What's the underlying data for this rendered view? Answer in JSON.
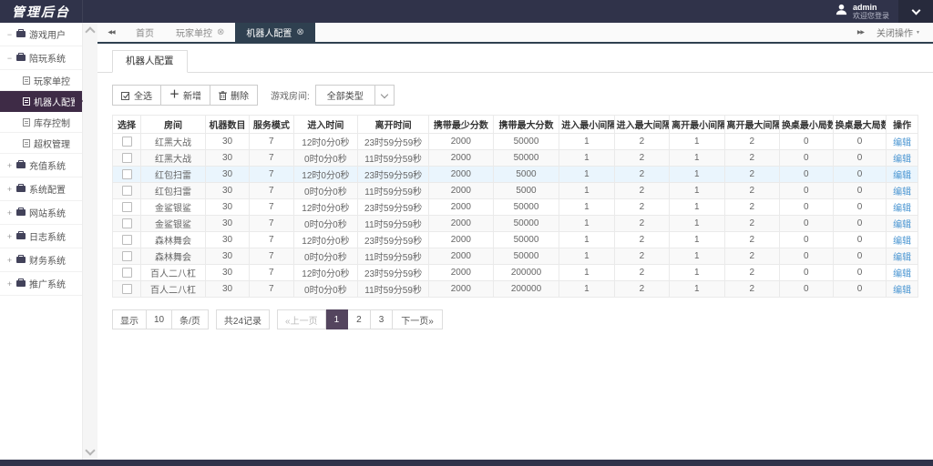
{
  "logo": "管理后台",
  "header": {
    "username": "admin",
    "welcome": "欢迎您登录"
  },
  "sidebar": {
    "items": [
      {
        "label": "游戏用户",
        "type": "group",
        "toggle": "−",
        "active": false
      },
      {
        "label": "陪玩系统",
        "type": "group",
        "toggle": "−",
        "active": false
      },
      {
        "label": "玩家单控",
        "type": "leaf",
        "active": false
      },
      {
        "label": "机器人配置",
        "type": "leaf",
        "active": true
      },
      {
        "label": "库存控制",
        "type": "leaf",
        "active": false
      },
      {
        "label": "超权管理",
        "type": "leaf",
        "active": false
      },
      {
        "label": "充值系统",
        "type": "group",
        "toggle": "+",
        "active": false
      },
      {
        "label": "系统配置",
        "type": "group",
        "toggle": "+",
        "active": false
      },
      {
        "label": "网站系统",
        "type": "group",
        "toggle": "+",
        "active": false
      },
      {
        "label": "日志系统",
        "type": "group",
        "toggle": "+",
        "active": false
      },
      {
        "label": "财务系统",
        "type": "group",
        "toggle": "+",
        "active": false
      },
      {
        "label": "推广系统",
        "type": "group",
        "toggle": "+",
        "active": false
      }
    ]
  },
  "tabbar": {
    "tabs": [
      {
        "label": "首页",
        "closable": false,
        "active": false
      },
      {
        "label": "玩家单控",
        "closable": true,
        "active": false
      },
      {
        "label": "机器人配置",
        "closable": true,
        "active": true
      }
    ],
    "close_icon": "⊗",
    "scroll_left": "◀◀",
    "scroll_right": "▶▶",
    "close_ops": "关闭操作",
    "ops_caret": "▼"
  },
  "panel": {
    "tab": "机器人配置",
    "toolbar": {
      "select_all": "全选",
      "add": "新增",
      "delete": "删除",
      "filter_label": "游戏房间:",
      "filter_value": "全部类型"
    }
  },
  "table": {
    "columns": [
      "选择",
      "房间",
      "机器数目",
      "服务模式",
      "进入时间",
      "离开时间",
      "携带最少分数",
      "携带最大分数",
      "进入最小间隔",
      "进入最大间隔",
      "离开最小间隔",
      "离开最大间隔",
      "换桌最小局数",
      "换桌最大局数",
      "操作"
    ],
    "edit_label": "编辑",
    "rows": [
      {
        "room": "红黑大战",
        "count": "30",
        "mode": "7",
        "enter": "12时0分0秒",
        "leave": "23时59分59秒",
        "min_score": "2000",
        "max_score": "50000",
        "enter_min": "1",
        "enter_max": "2",
        "leave_min": "1",
        "leave_max": "2",
        "change_min": "0",
        "change_max": "0",
        "highlight": false
      },
      {
        "room": "红黑大战",
        "count": "30",
        "mode": "7",
        "enter": "0时0分0秒",
        "leave": "11时59分59秒",
        "min_score": "2000",
        "max_score": "50000",
        "enter_min": "1",
        "enter_max": "2",
        "leave_min": "1",
        "leave_max": "2",
        "change_min": "0",
        "change_max": "0",
        "highlight": false
      },
      {
        "room": "红包扫雷",
        "count": "30",
        "mode": "7",
        "enter": "12时0分0秒",
        "leave": "23时59分59秒",
        "min_score": "2000",
        "max_score": "5000",
        "enter_min": "1",
        "enter_max": "2",
        "leave_min": "1",
        "leave_max": "2",
        "change_min": "0",
        "change_max": "0",
        "highlight": true
      },
      {
        "room": "红包扫雷",
        "count": "30",
        "mode": "7",
        "enter": "0时0分0秒",
        "leave": "11时59分59秒",
        "min_score": "2000",
        "max_score": "5000",
        "enter_min": "1",
        "enter_max": "2",
        "leave_min": "1",
        "leave_max": "2",
        "change_min": "0",
        "change_max": "0",
        "highlight": false
      },
      {
        "room": "金鲨银鲨",
        "count": "30",
        "mode": "7",
        "enter": "12时0分0秒",
        "leave": "23时59分59秒",
        "min_score": "2000",
        "max_score": "50000",
        "enter_min": "1",
        "enter_max": "2",
        "leave_min": "1",
        "leave_max": "2",
        "change_min": "0",
        "change_max": "0",
        "highlight": false
      },
      {
        "room": "金鲨银鲨",
        "count": "30",
        "mode": "7",
        "enter": "0时0分0秒",
        "leave": "11时59分59秒",
        "min_score": "2000",
        "max_score": "50000",
        "enter_min": "1",
        "enter_max": "2",
        "leave_min": "1",
        "leave_max": "2",
        "change_min": "0",
        "change_max": "0",
        "highlight": false
      },
      {
        "room": "森林舞会",
        "count": "30",
        "mode": "7",
        "enter": "12时0分0秒",
        "leave": "23时59分59秒",
        "min_score": "2000",
        "max_score": "50000",
        "enter_min": "1",
        "enter_max": "2",
        "leave_min": "1",
        "leave_max": "2",
        "change_min": "0",
        "change_max": "0",
        "highlight": false
      },
      {
        "room": "森林舞会",
        "count": "30",
        "mode": "7",
        "enter": "0时0分0秒",
        "leave": "11时59分59秒",
        "min_score": "2000",
        "max_score": "50000",
        "enter_min": "1",
        "enter_max": "2",
        "leave_min": "1",
        "leave_max": "2",
        "change_min": "0",
        "change_max": "0",
        "highlight": false
      },
      {
        "room": "百人二八杠",
        "count": "30",
        "mode": "7",
        "enter": "12时0分0秒",
        "leave": "23时59分59秒",
        "min_score": "2000",
        "max_score": "200000",
        "enter_min": "1",
        "enter_max": "2",
        "leave_min": "1",
        "leave_max": "2",
        "change_min": "0",
        "change_max": "0",
        "highlight": false
      },
      {
        "room": "百人二八杠",
        "count": "30",
        "mode": "7",
        "enter": "0时0分0秒",
        "leave": "11时59分59秒",
        "min_score": "2000",
        "max_score": "200000",
        "enter_min": "1",
        "enter_max": "2",
        "leave_min": "1",
        "leave_max": "2",
        "change_min": "0",
        "change_max": "0",
        "highlight": false
      }
    ]
  },
  "pagination": {
    "show_label": "显示",
    "page_size": "10",
    "per_page_label": "条/页",
    "total": "共24记录",
    "prev": "«上一页",
    "pages": [
      "1",
      "2",
      "3"
    ],
    "active_page": "1",
    "next": "下一页»"
  },
  "colors": {
    "header_bg": "#30334a",
    "sidebar_active_bg": "#3e2b46",
    "active_tab_bg": "#2f4050",
    "page_active_bg": "#54455e",
    "link": "#4b96d2",
    "row_highlight": "#eaf5fd",
    "row_stripe": "#f9f9f9"
  }
}
